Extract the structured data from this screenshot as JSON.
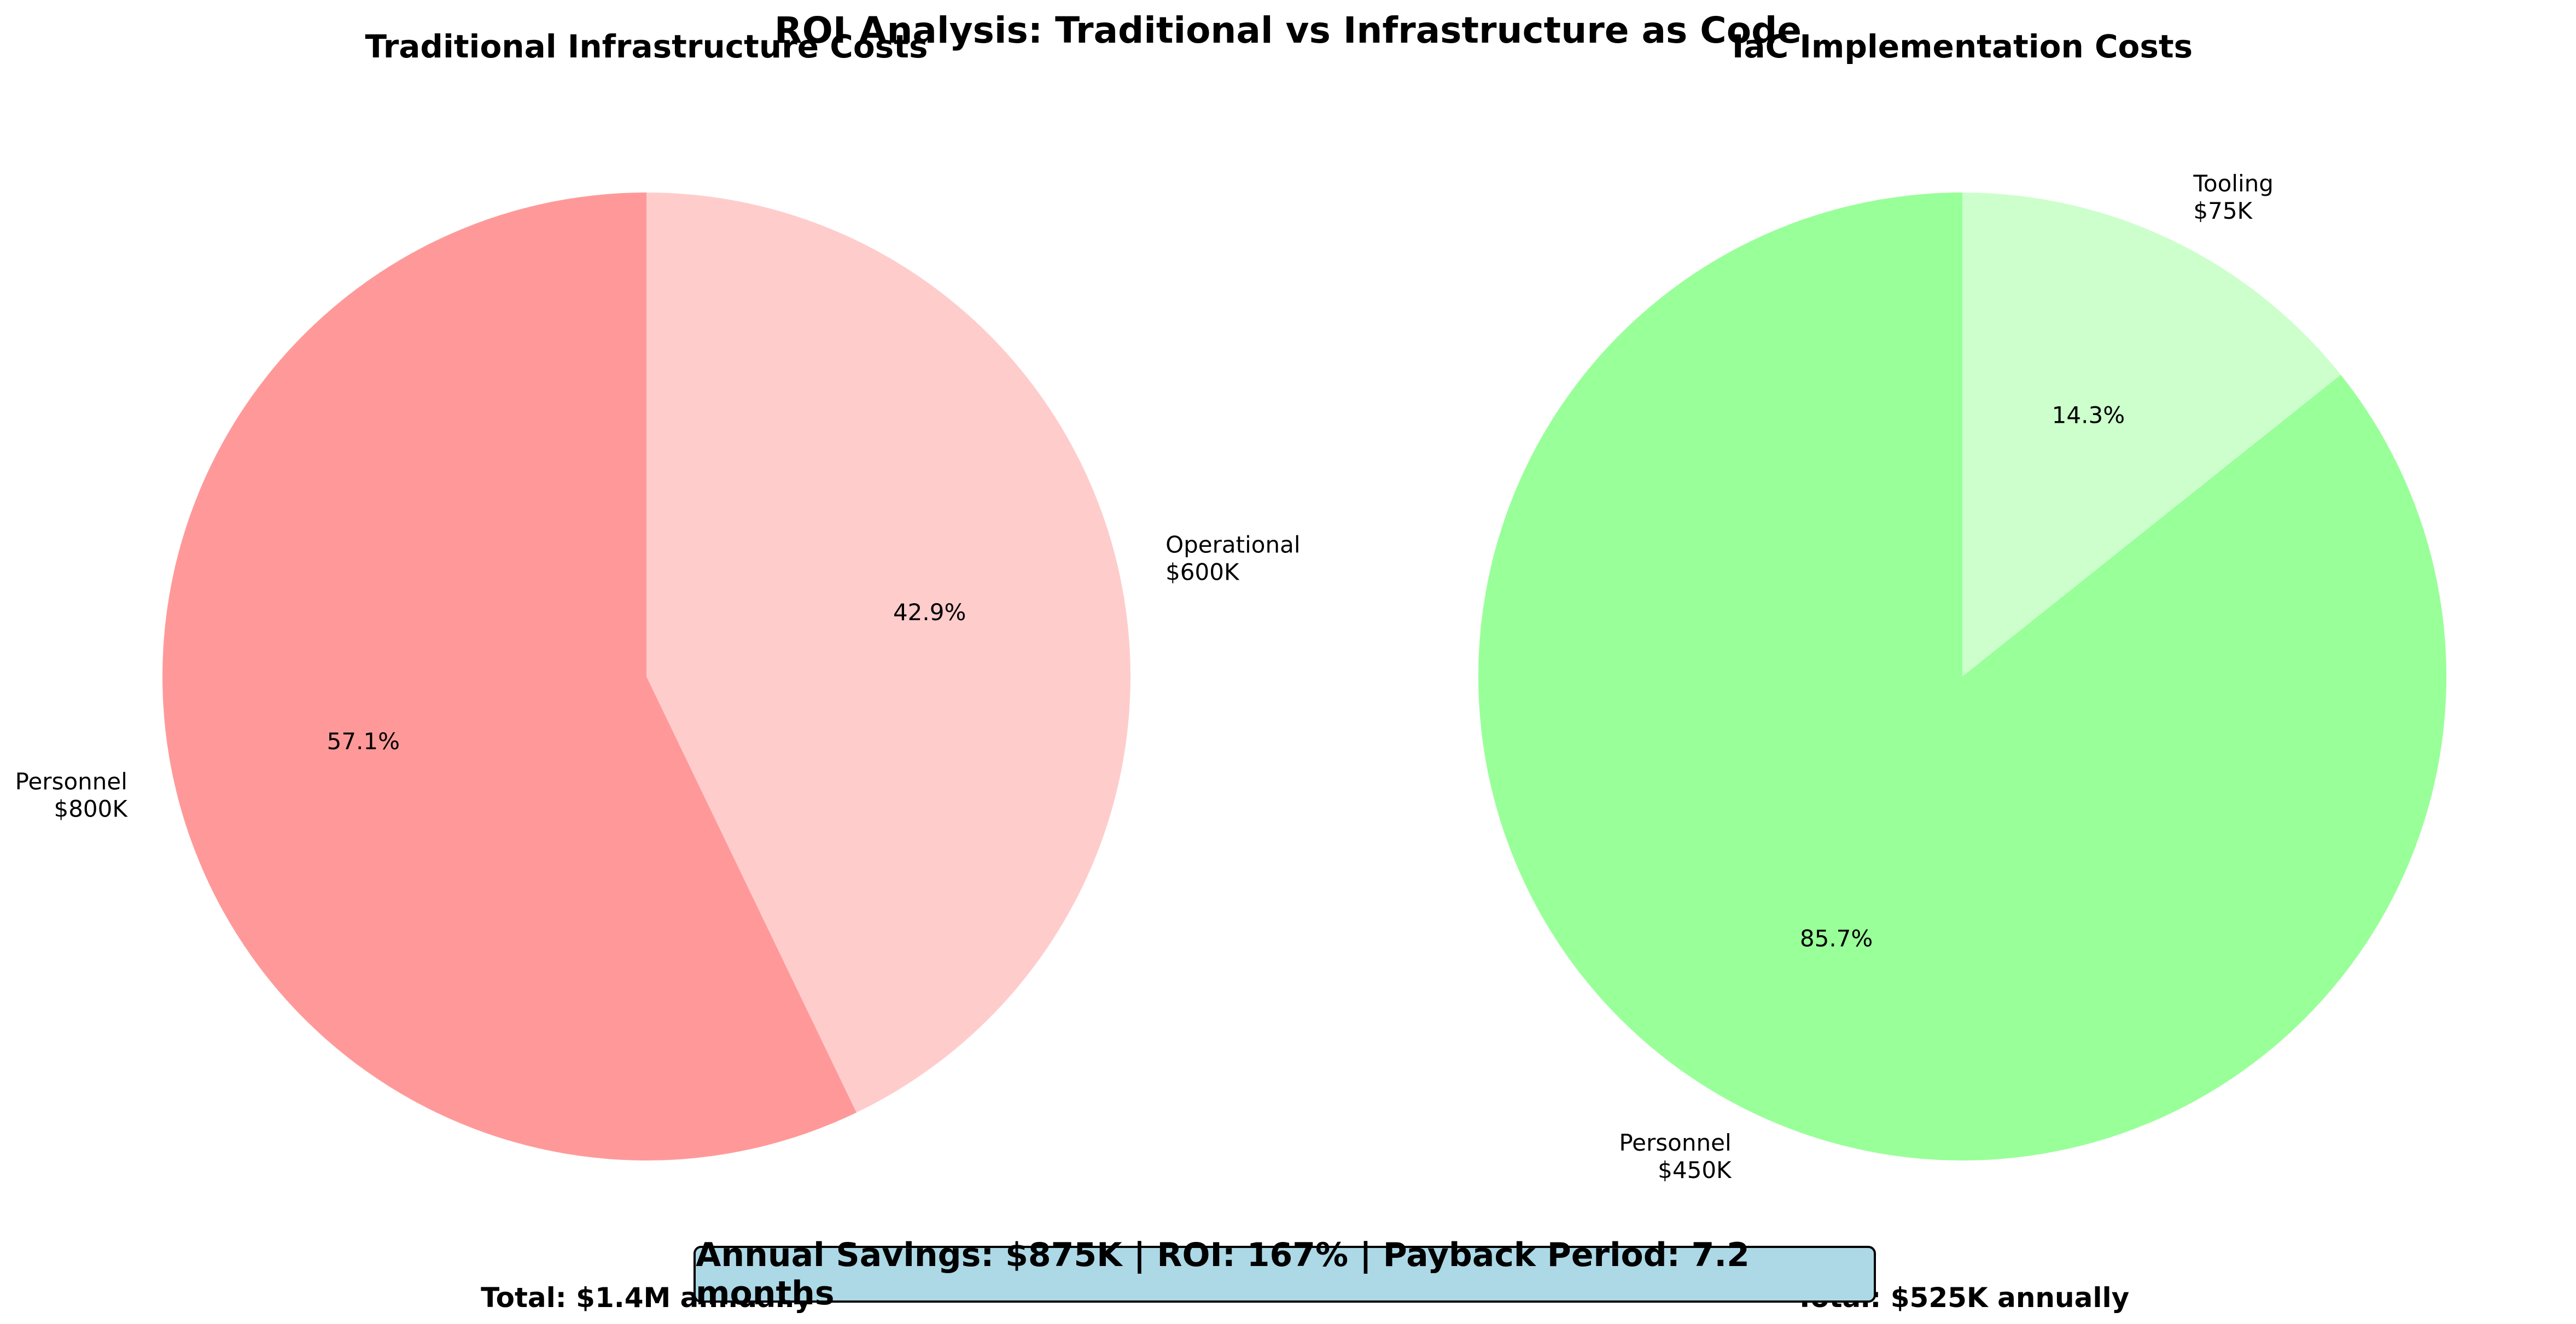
{
  "suptitle": "ROI Analysis: Traditional vs Infrastructure as Code",
  "savings_text": "Annual Savings: $875K | ROI: 167% | Payback Period: 7.2 months",
  "chart_data": [
    {
      "type": "pie",
      "title": "Traditional Infrastructure Costs",
      "title_color": "#ff0000",
      "total_label": "Total: $1.4M annually",
      "slices": [
        {
          "label": "Personnel",
          "value_label": "$800K",
          "value": 800,
          "pct_label": "57.1%",
          "color": "#ff9999"
        },
        {
          "label": "Operational",
          "value_label": "$600K",
          "value": 600,
          "pct_label": "42.9%",
          "color": "#ffcccc"
        }
      ]
    },
    {
      "type": "pie",
      "title": "IaC Implementation Costs",
      "title_color": "#008000",
      "total_label": "Total: $525K annually",
      "slices": [
        {
          "label": "Personnel",
          "value_label": "$450K",
          "value": 450,
          "pct_label": "85.7%",
          "color": "#99ff99"
        },
        {
          "label": "Tooling",
          "value_label": "$75K",
          "value": 75,
          "pct_label": "14.3%",
          "color": "#ccffcc"
        }
      ]
    }
  ]
}
